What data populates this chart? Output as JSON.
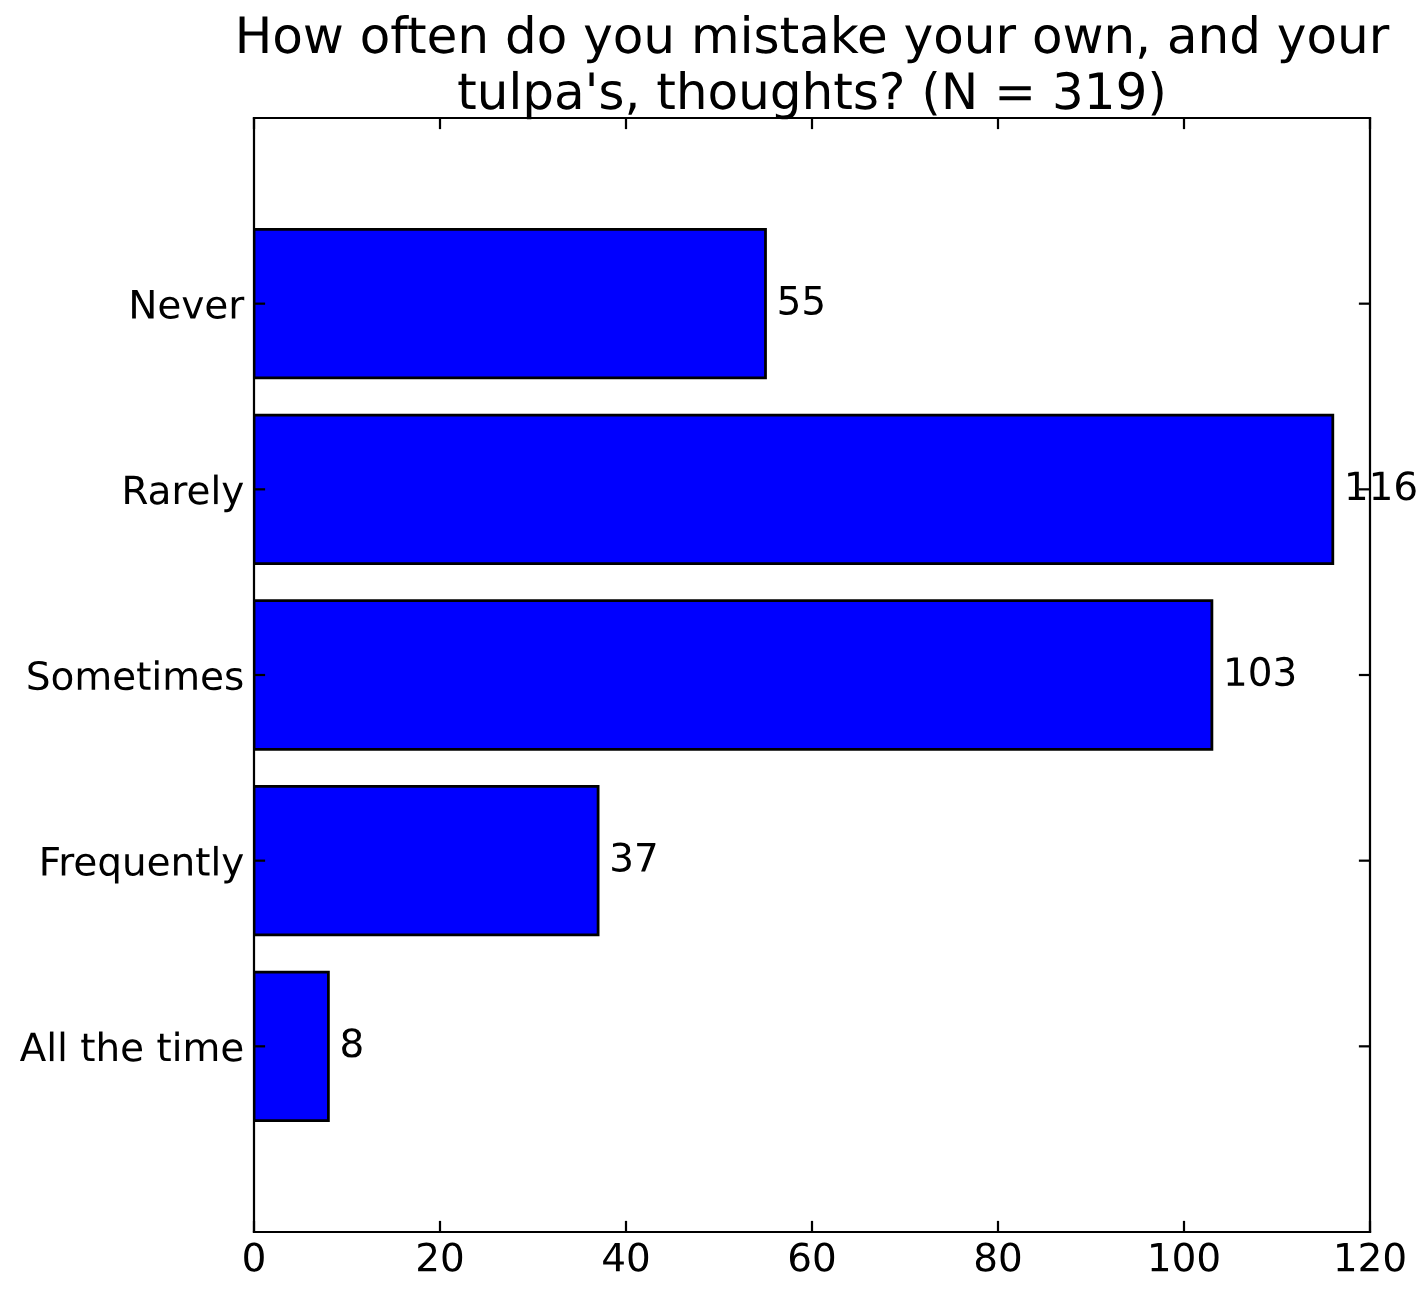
{
  "chart_data": {
    "type": "bar",
    "orientation": "horizontal",
    "title": "How often do you mistake your own, and your tulpa's, thoughts? (N = 319)",
    "categories": [
      "Never",
      "Rarely",
      "Sometimes",
      "Frequently",
      "All the time"
    ],
    "values": [
      55,
      116,
      103,
      37,
      8
    ],
    "color": "#0000ff",
    "xlim": [
      0,
      120
    ],
    "xticks": [
      0,
      20,
      40,
      60,
      80,
      100,
      120
    ],
    "grid": false,
    "data_labels": true
  }
}
